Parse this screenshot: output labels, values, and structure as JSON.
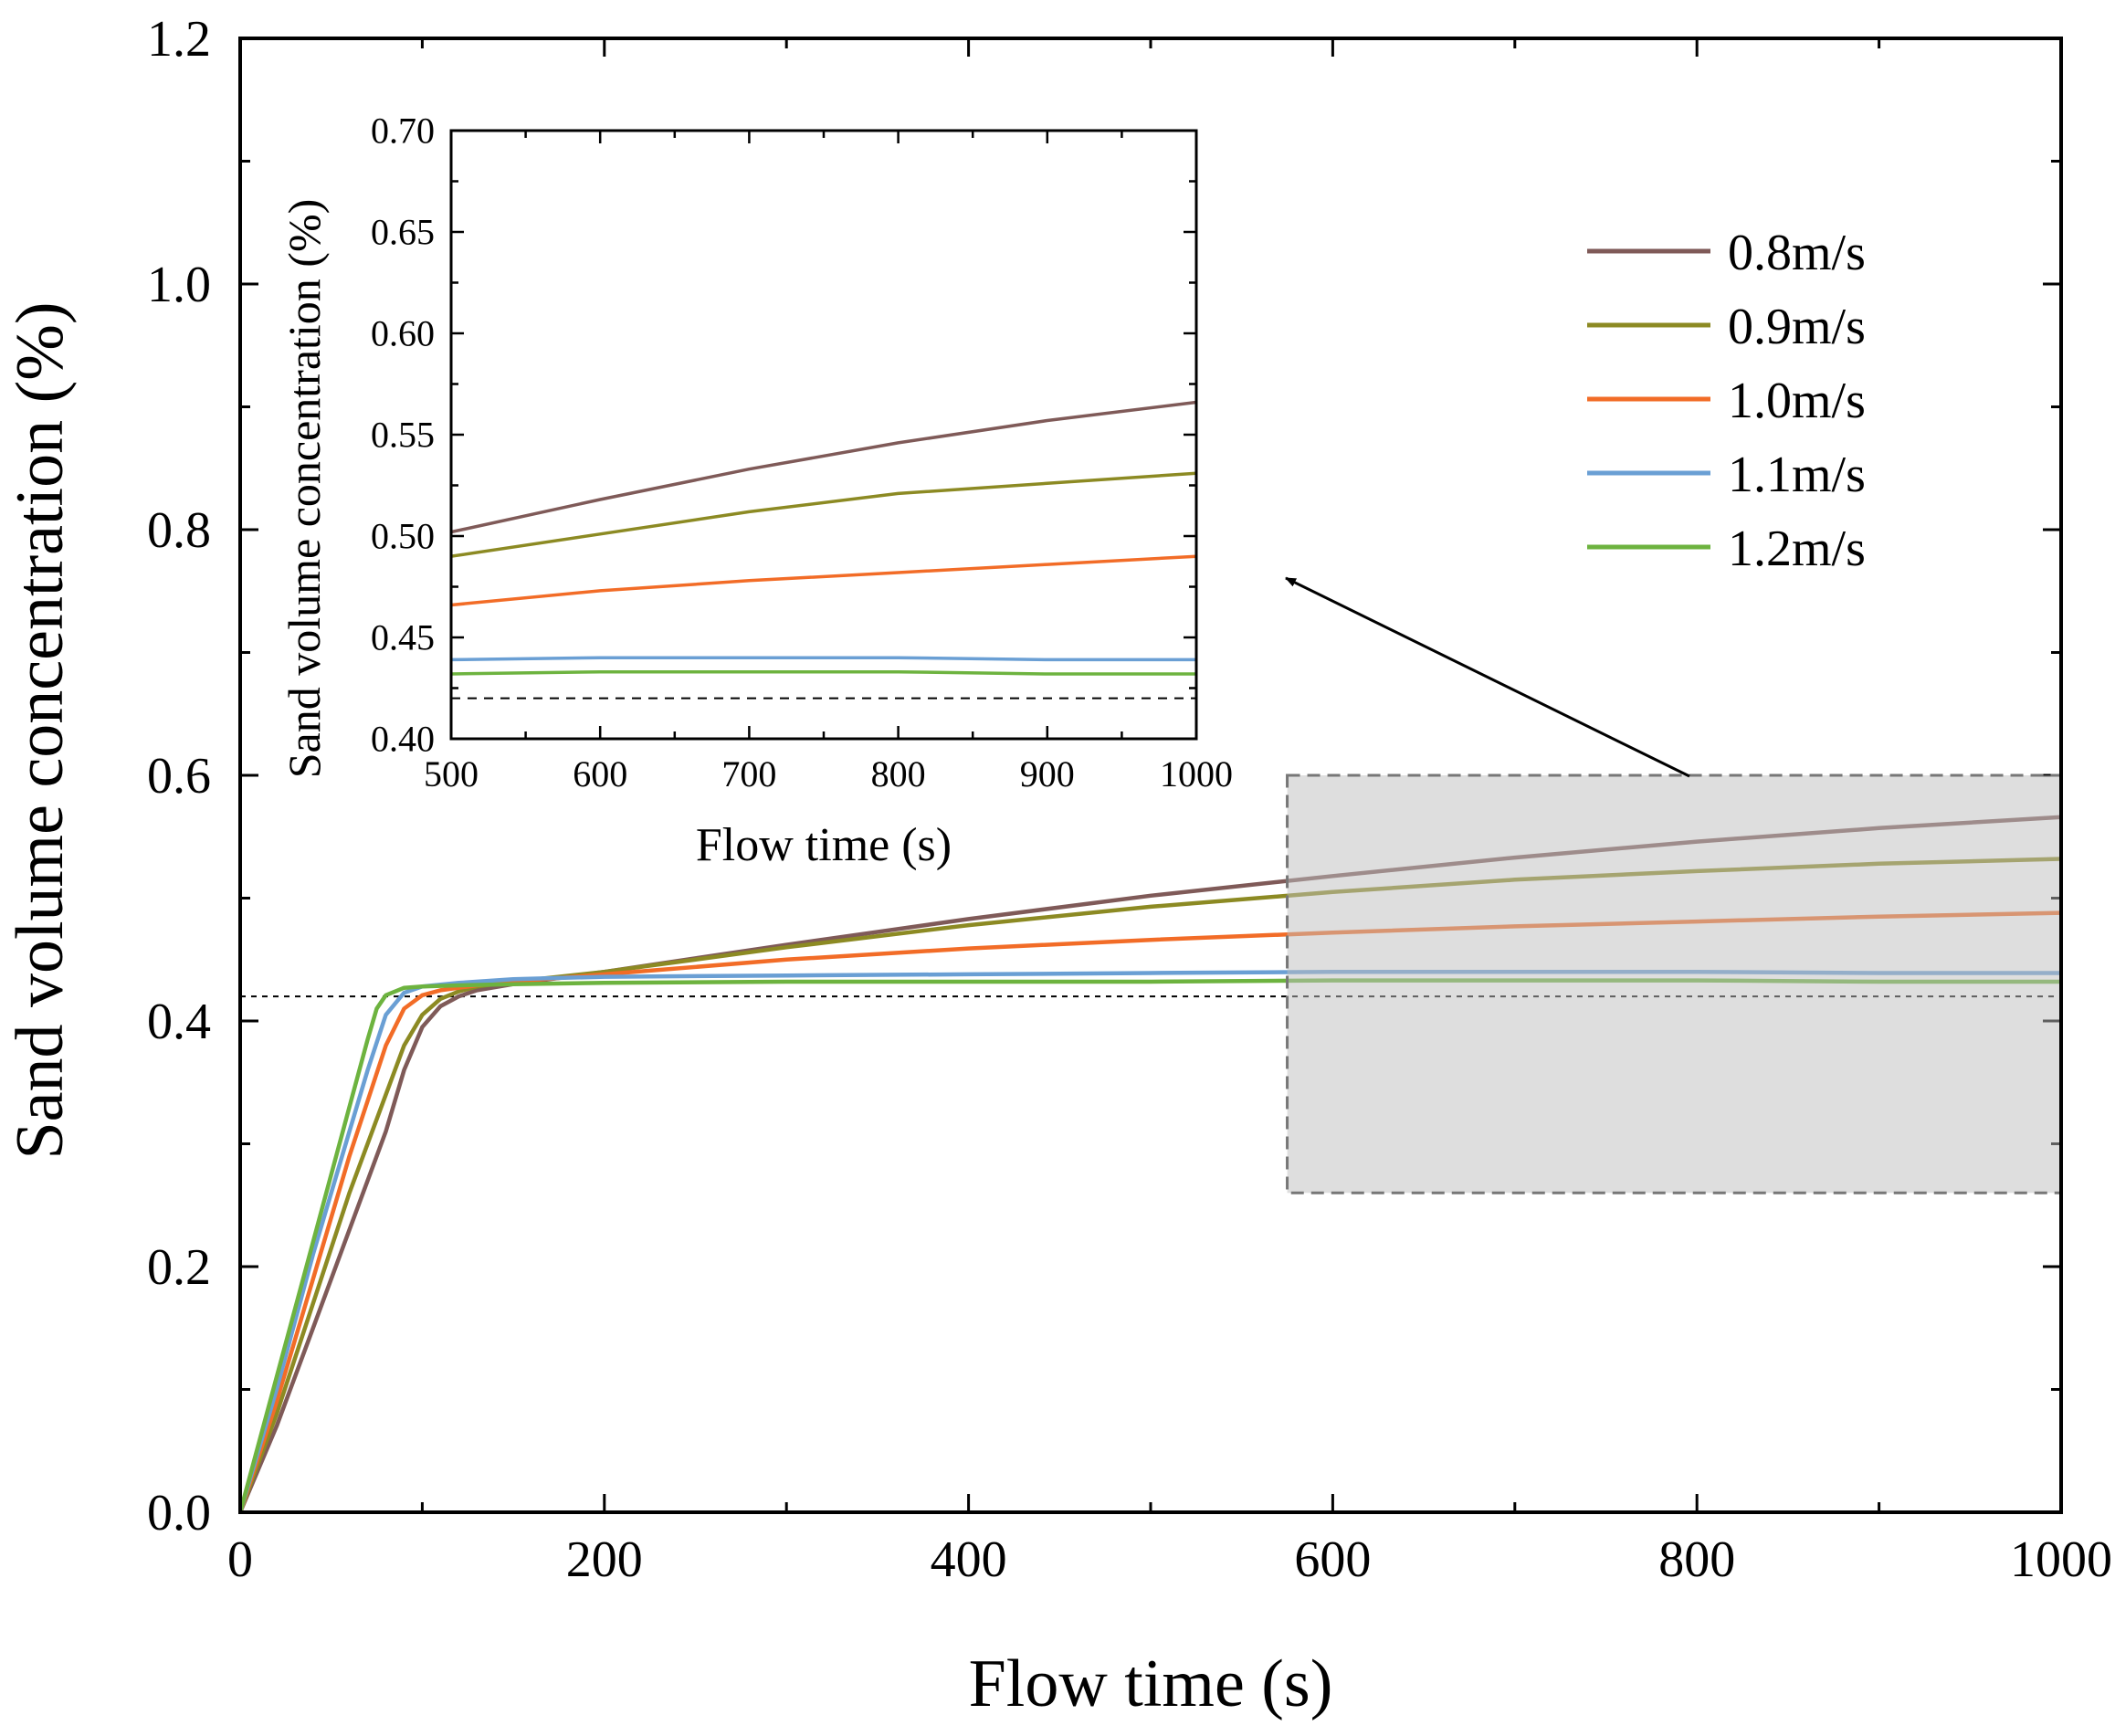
{
  "chart_data": [
    {
      "type": "line",
      "role": "main",
      "xlabel": "Flow time (s)",
      "ylabel": "Sand volume concentration (%)",
      "xlim": [
        0,
        1000
      ],
      "ylim": [
        0,
        1.2
      ],
      "x_ticks": [
        0,
        200,
        400,
        600,
        800,
        1000
      ],
      "x_tick_labels": [
        "0",
        "200",
        "400",
        "600",
        "800",
        "1000"
      ],
      "y_ticks": [
        0.0,
        0.2,
        0.4,
        0.6,
        0.8,
        1.0,
        1.2
      ],
      "y_tick_labels": [
        "0.0",
        "0.2",
        "0.4",
        "0.6",
        "0.8",
        "1.0",
        "1.2"
      ],
      "reference_line": {
        "y": 0.42,
        "style": "dashed"
      },
      "highlight_box": {
        "x": [
          575,
          1000
        ],
        "y": [
          0.26,
          0.6
        ]
      },
      "legend": {
        "position": "top-right"
      },
      "series": [
        {
          "name": "0.8m/s",
          "color": "#7f5a58",
          "x": [
            0,
            20,
            40,
            60,
            80,
            90,
            100,
            110,
            120,
            130,
            150,
            200,
            300,
            400,
            500,
            600,
            700,
            800,
            900,
            1000
          ],
          "y": [
            0,
            0.07,
            0.15,
            0.23,
            0.31,
            0.36,
            0.395,
            0.412,
            0.42,
            0.425,
            0.43,
            0.44,
            0.462,
            0.483,
            0.502,
            0.518,
            0.533,
            0.546,
            0.557,
            0.566
          ]
        },
        {
          "name": "0.9m/s",
          "color": "#8c8a23",
          "x": [
            0,
            20,
            40,
            60,
            80,
            90,
            100,
            110,
            120,
            130,
            150,
            200,
            300,
            400,
            500,
            600,
            700,
            800,
            900,
            1000
          ],
          "y": [
            0,
            0.08,
            0.17,
            0.26,
            0.34,
            0.38,
            0.405,
            0.418,
            0.424,
            0.428,
            0.432,
            0.44,
            0.46,
            0.478,
            0.493,
            0.505,
            0.515,
            0.522,
            0.528,
            0.532
          ]
        },
        {
          "name": "1.0m/s",
          "color": "#f26c27",
          "x": [
            0,
            20,
            40,
            60,
            70,
            80,
            90,
            100,
            110,
            130,
            150,
            200,
            300,
            400,
            500,
            600,
            700,
            800,
            900,
            1000
          ],
          "y": [
            0,
            0.09,
            0.19,
            0.29,
            0.335,
            0.38,
            0.41,
            0.421,
            0.425,
            0.429,
            0.432,
            0.438,
            0.45,
            0.459,
            0.466,
            0.472,
            0.477,
            0.481,
            0.485,
            0.488
          ]
        },
        {
          "name": "1.1m/s",
          "color": "#6a9fd4",
          "x": [
            0,
            20,
            40,
            60,
            70,
            80,
            90,
            100,
            120,
            150,
            200,
            300,
            400,
            500,
            600,
            700,
            800,
            900,
            1000
          ],
          "y": [
            0,
            0.1,
            0.21,
            0.31,
            0.36,
            0.405,
            0.423,
            0.428,
            0.431,
            0.434,
            0.436,
            0.437,
            0.438,
            0.439,
            0.44,
            0.44,
            0.44,
            0.439,
            0.439
          ]
        },
        {
          "name": "1.2m/s",
          "color": "#6db33f",
          "x": [
            0,
            20,
            40,
            60,
            70,
            75,
            80,
            90,
            100,
            120,
            150,
            200,
            300,
            400,
            500,
            600,
            700,
            800,
            900,
            1000
          ],
          "y": [
            0,
            0.11,
            0.22,
            0.33,
            0.385,
            0.41,
            0.421,
            0.427,
            0.428,
            0.429,
            0.43,
            0.431,
            0.432,
            0.432,
            0.432,
            0.433,
            0.433,
            0.433,
            0.432,
            0.432
          ]
        }
      ]
    },
    {
      "type": "line",
      "role": "inset",
      "xlabel": "Flow time (s)",
      "ylabel": "Sand volume concentration (%)",
      "xlim": [
        500,
        1000
      ],
      "ylim": [
        0.4,
        0.7
      ],
      "x_ticks": [
        500,
        600,
        700,
        800,
        900,
        1000
      ],
      "x_tick_labels": [
        "500",
        "600",
        "700",
        "800",
        "900",
        "1000"
      ],
      "y_ticks": [
        0.4,
        0.45,
        0.5,
        0.55,
        0.6,
        0.65,
        0.7
      ],
      "y_tick_labels": [
        "0.40",
        "0.45",
        "0.50",
        "0.55",
        "0.60",
        "0.65",
        "0.70"
      ],
      "reference_line": {
        "y": 0.42,
        "style": "dashed"
      },
      "series": [
        {
          "name": "0.8m/s",
          "color": "#7f5a58",
          "x": [
            500,
            600,
            700,
            800,
            900,
            1000
          ],
          "y": [
            0.502,
            0.518,
            0.533,
            0.546,
            0.557,
            0.566
          ]
        },
        {
          "name": "0.9m/s",
          "color": "#8c8a23",
          "x": [
            500,
            600,
            700,
            800,
            900,
            1000
          ],
          "y": [
            0.49,
            0.501,
            0.512,
            0.521,
            0.526,
            0.531
          ]
        },
        {
          "name": "1.0m/s",
          "color": "#f26c27",
          "x": [
            500,
            600,
            700,
            800,
            900,
            1000
          ],
          "y": [
            0.466,
            0.473,
            0.478,
            0.482,
            0.486,
            0.49
          ]
        },
        {
          "name": "1.1m/s",
          "color": "#6a9fd4",
          "x": [
            500,
            600,
            700,
            800,
            900,
            1000
          ],
          "y": [
            0.439,
            0.44,
            0.44,
            0.44,
            0.439,
            0.439
          ]
        },
        {
          "name": "1.2m/s",
          "color": "#6db33f",
          "x": [
            500,
            600,
            700,
            800,
            900,
            1000
          ],
          "y": [
            0.432,
            0.433,
            0.433,
            0.433,
            0.432,
            0.432
          ]
        }
      ]
    }
  ]
}
